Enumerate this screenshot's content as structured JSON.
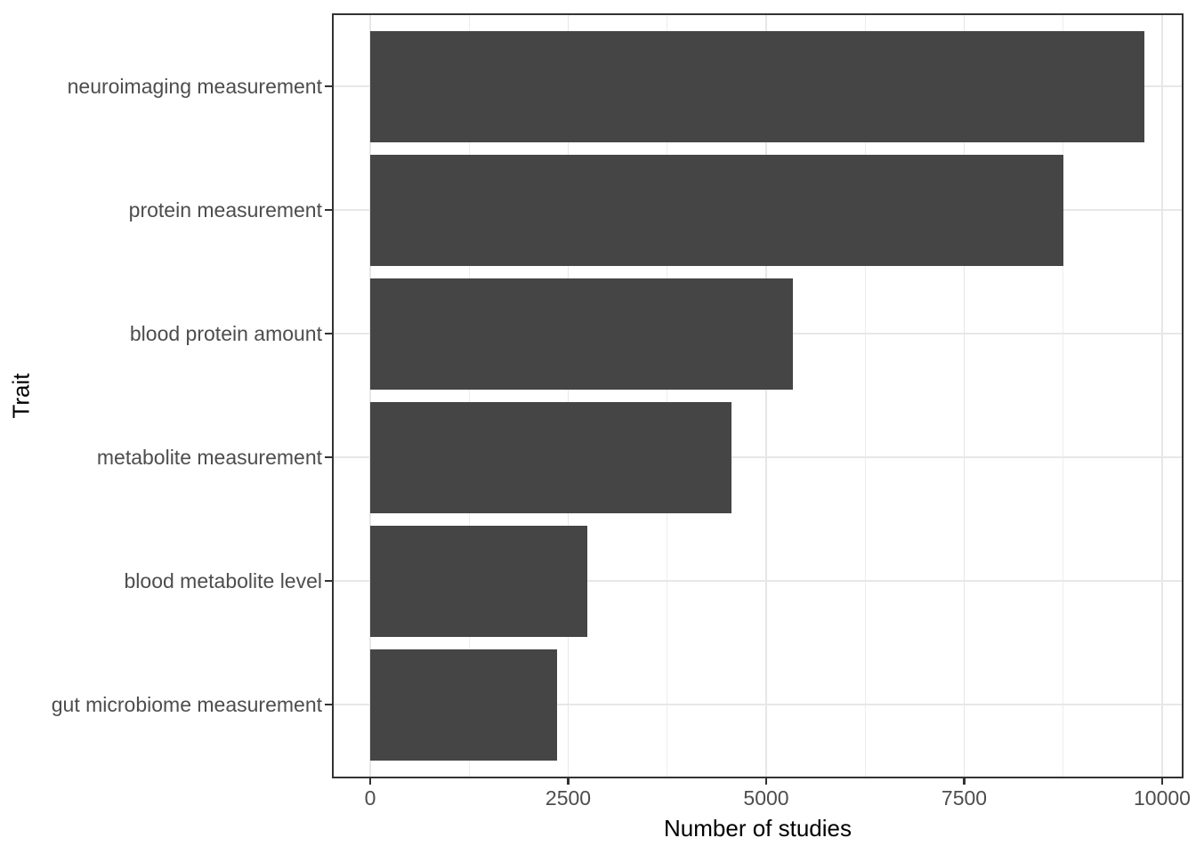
{
  "chart_data": {
    "type": "bar",
    "orientation": "horizontal",
    "title": "",
    "xlabel": "Number of studies",
    "ylabel": "Trait",
    "categories": [
      "neuroimaging measurement",
      "protein measurement",
      "blood protein amount",
      "metabolite measurement",
      "blood metabolite level",
      "gut microbiome measurement"
    ],
    "values": [
      9775,
      8750,
      5340,
      4560,
      2740,
      2360
    ],
    "xlim": [
      0,
      10000
    ],
    "x_ticks": [
      0,
      2500,
      5000,
      7500,
      10000
    ],
    "x_tick_labels": [
      "0",
      "2500",
      "5000",
      "7500",
      "10000"
    ],
    "x_minor_ticks": [
      1250,
      3750,
      6250,
      8750
    ],
    "bar_color": "#454545",
    "grid": "major-and-minor",
    "legend_position": "none",
    "theme": "bw",
    "panel_background": "#ffffff",
    "gridline_color": "#e7e7e7",
    "axis_text_color": "#4d4d4d",
    "axis_title_color": "#000000"
  }
}
